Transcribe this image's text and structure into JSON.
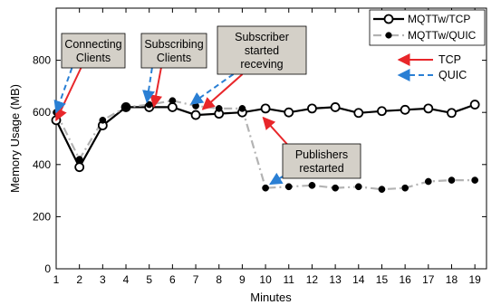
{
  "chart_data": {
    "type": "line",
    "xlabel": "Minutes",
    "ylabel": "Memory Usage (MB)",
    "xlim": [
      1,
      19.5
    ],
    "ylim": [
      0,
      1000
    ],
    "x_ticks": [
      1,
      2,
      3,
      4,
      5,
      6,
      7,
      8,
      9,
      10,
      11,
      12,
      13,
      14,
      15,
      16,
      17,
      18,
      19
    ],
    "y_ticks": [
      0,
      200,
      400,
      600,
      800
    ],
    "grid": false,
    "legend_position": "top-right",
    "series": [
      {
        "name": "MQTTw/TCP",
        "color": "#000000",
        "line_style": "solid",
        "marker": "open-circle",
        "x": [
          1,
          2,
          3,
          4,
          5,
          6,
          7,
          8,
          9,
          10,
          11,
          12,
          13,
          14,
          15,
          16,
          17,
          18,
          19
        ],
        "y": [
          570,
          390,
          550,
          620,
          620,
          620,
          590,
          595,
          600,
          615,
          600,
          615,
          620,
          598,
          605,
          610,
          615,
          598,
          630
        ]
      },
      {
        "name": "MQTTw/QUIC",
        "color": "#b3b3b3",
        "line_style": "dash-dot",
        "marker": "filled-circle",
        "x": [
          1,
          2,
          3,
          4,
          5,
          6,
          7,
          8,
          9,
          10,
          11,
          12,
          13,
          14,
          15,
          16,
          17,
          18,
          19
        ],
        "y": [
          600,
          420,
          570,
          620,
          630,
          645,
          625,
          615,
          615,
          310,
          315,
          320,
          310,
          315,
          305,
          310,
          335,
          340,
          340
        ]
      }
    ],
    "annotations": [
      {
        "lines": [
          "Connecting",
          "Clients"
        ],
        "tcp_arrow_to": [
          1,
          570
        ],
        "quic_arrow_to": [
          1,
          600
        ]
      },
      {
        "lines": [
          "Subscribing",
          "Clients"
        ],
        "tcp_arrow_to": [
          5.2,
          622
        ],
        "quic_arrow_to": [
          4.9,
          640
        ]
      },
      {
        "lines": [
          "Subscriber",
          "started",
          "receving"
        ],
        "tcp_arrow_to": [
          7.3,
          612
        ],
        "quic_arrow_to": [
          6.8,
          632
        ]
      },
      {
        "lines": [
          "Publishers",
          "restarted"
        ],
        "tcp_arrow_to": [
          9.9,
          580
        ],
        "quic_arrow_to": [
          10.2,
          325
        ]
      }
    ],
    "arrow_key": [
      {
        "label": "TCP",
        "color": "#e8262a",
        "style": "solid"
      },
      {
        "label": "QUIC",
        "color": "#2a7fd4",
        "style": "dashed"
      }
    ]
  }
}
